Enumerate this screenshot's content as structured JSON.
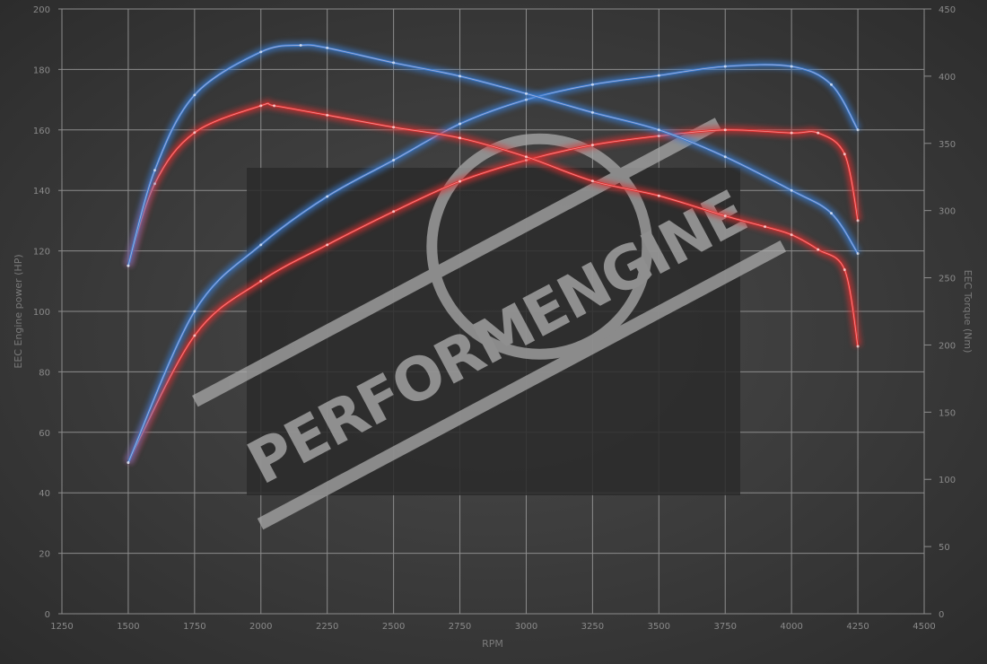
{
  "chart_data": {
    "type": "line",
    "title": "",
    "xlabel": "RPM",
    "ylabel_left": "EEC Engine power (HP)",
    "ylabel_right": "EEC Torque (Nm)",
    "xlim": [
      1250,
      4500
    ],
    "ylim_left": [
      0,
      200
    ],
    "ylim_right": [
      0,
      450
    ],
    "x_ticks": [
      1250,
      1500,
      1750,
      2000,
      2250,
      2500,
      2750,
      3000,
      3250,
      3500,
      3750,
      4000,
      4250,
      4500
    ],
    "y_left_ticks": [
      0,
      20,
      40,
      60,
      80,
      100,
      120,
      140,
      160,
      180,
      200
    ],
    "y_right_ticks": [
      0,
      50,
      100,
      150,
      200,
      250,
      300,
      350,
      400,
      450
    ],
    "grid": true,
    "series": [
      {
        "axis": "left",
        "color": "#e03030",
        "x": [
          1500,
          1750,
          2000,
          2250,
          2500,
          2750,
          3000,
          3250,
          3500,
          3750,
          4000,
          4100,
          4200,
          4250
        ],
        "y": [
          50,
          92,
          110,
          122,
          133,
          143,
          150,
          155,
          158,
          160,
          159,
          159,
          152,
          130
        ]
      },
      {
        "axis": "left",
        "color": "#3a7fd5",
        "x": [
          1500,
          1750,
          2000,
          2250,
          2500,
          2750,
          3000,
          3250,
          3500,
          3750,
          4000,
          4150,
          4250
        ],
        "y": [
          50,
          100,
          122,
          138,
          150,
          162,
          170,
          175,
          178,
          181,
          181,
          175,
          160
        ]
      },
      {
        "axis": "right",
        "color": "#e03030",
        "x": [
          1500,
          1600,
          1750,
          2000,
          2050,
          2250,
          2500,
          2750,
          3000,
          3250,
          3500,
          3750,
          3900,
          4000,
          4100,
          4200,
          4250
        ],
        "y": [
          259,
          320,
          358,
          378,
          378,
          371,
          362,
          354,
          340,
          322,
          311,
          296,
          288,
          282,
          271,
          256,
          199
        ]
      },
      {
        "axis": "right",
        "color": "#3a7fd5",
        "x": [
          1500,
          1600,
          1750,
          2000,
          2150,
          2250,
          2500,
          2750,
          3000,
          3250,
          3500,
          3750,
          4000,
          4150,
          4250
        ],
        "y": [
          259,
          330,
          386,
          418,
          423,
          421,
          410,
          400,
          387,
          373,
          360,
          340,
          315,
          298,
          268
        ]
      }
    ]
  },
  "watermark": {
    "logo_text": "PERFORMENGINE"
  }
}
